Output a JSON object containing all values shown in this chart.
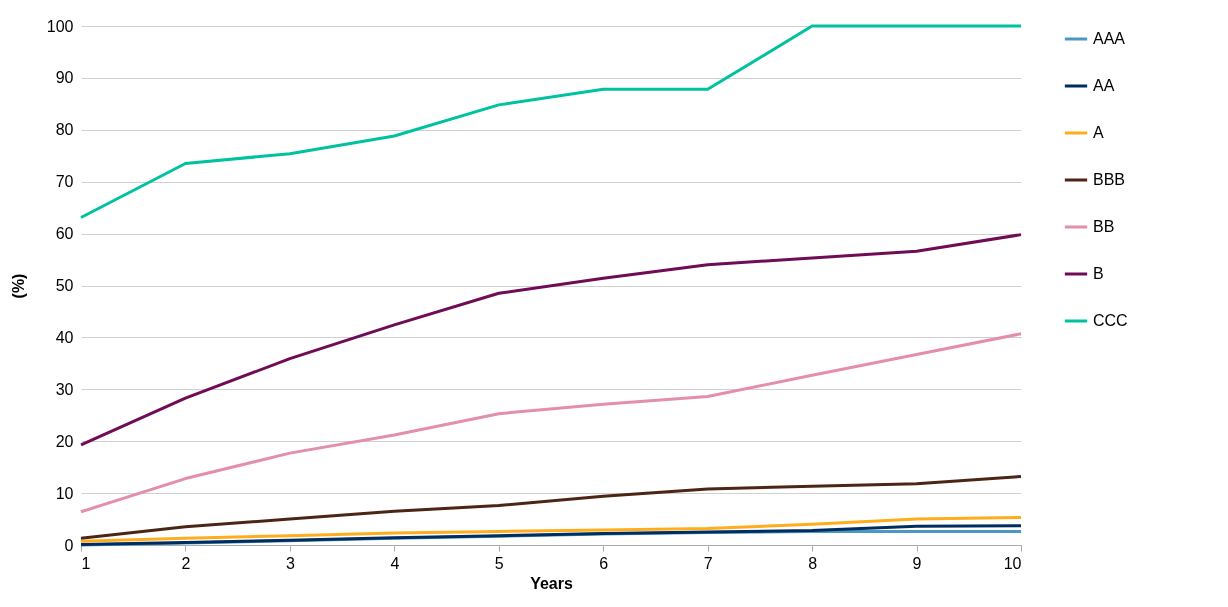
{
  "chart_data": {
    "type": "line",
    "xlabel": "Years",
    "ylabel": "(%)",
    "x": [
      1,
      2,
      3,
      4,
      5,
      6,
      7,
      8,
      9,
      10
    ],
    "xlim": [
      1,
      10
    ],
    "xticks": [
      1,
      2,
      3,
      4,
      5,
      6,
      7,
      8,
      9,
      10
    ],
    "ylim": [
      0,
      100
    ],
    "yticks": [
      0,
      10,
      20,
      30,
      40,
      50,
      60,
      70,
      80,
      90,
      100
    ],
    "grid": "y",
    "legend": "right",
    "marker": "none",
    "line_style": "solid",
    "series": [
      {
        "name": "AAA",
        "color": "#4a98c3",
        "values": [
          0,
          0.4,
          0.8,
          1.3,
          1.7,
          2.1,
          2.4,
          2.6,
          2.6,
          2.6
        ]
      },
      {
        "name": "AA",
        "color": "#002d5f",
        "values": [
          0.1,
          0.5,
          0.9,
          1.4,
          1.8,
          2.2,
          2.5,
          2.8,
          3.6,
          3.7
        ]
      },
      {
        "name": "A",
        "color": "#ffad1d",
        "values": [
          0.7,
          1.3,
          1.8,
          2.3,
          2.6,
          2.9,
          3.2,
          4.0,
          5.0,
          5.3
        ]
      },
      {
        "name": "BBB",
        "color": "#4b2616",
        "values": [
          1.3,
          3.5,
          5.0,
          6.5,
          7.6,
          9.4,
          10.8,
          11.3,
          11.8,
          13.2
        ]
      },
      {
        "name": "BB",
        "color": "#e38fa8",
        "values": [
          6.4,
          12.8,
          17.7,
          21.2,
          25.3,
          27.1,
          28.6,
          32.7,
          36.7,
          40.7
        ]
      },
      {
        "name": "B",
        "color": "#6f0c55",
        "values": [
          19.3,
          28.3,
          35.9,
          42.4,
          48.5,
          51.4,
          54.0,
          55.3,
          56.6,
          59.8
        ]
      },
      {
        "name": "CCC",
        "color": "#00c1a0",
        "values": [
          63.1,
          73.5,
          75.4,
          78.8,
          84.8,
          87.8,
          87.8,
          100,
          100,
          100
        ]
      }
    ]
  }
}
